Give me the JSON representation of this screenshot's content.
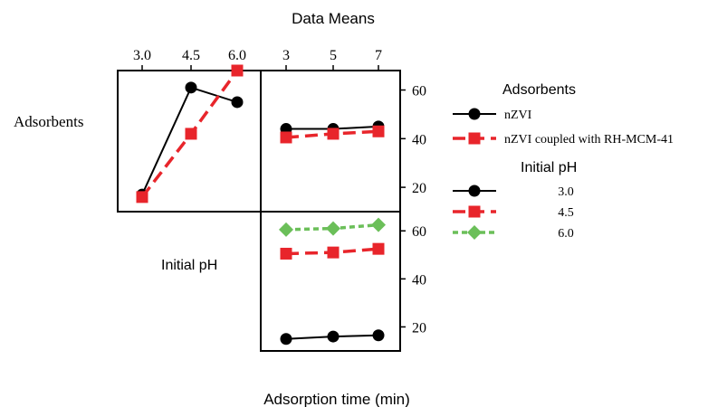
{
  "title": "Data Means",
  "xlabel": "Adsorption time (min)",
  "row_labels": [
    "Adsorbents",
    "Initial pH"
  ],
  "legend_adsorbents": {
    "title": "Adsorbents",
    "items": [
      {
        "label": "nZVI",
        "color": "#000000",
        "marker": "circle",
        "dash": "solid"
      },
      {
        "label": "nZVI coupled with RH-MCM-41",
        "color": "#e8252b",
        "marker": "square",
        "dash": "dashed"
      }
    ]
  },
  "legend_ph": {
    "title": "Initial pH",
    "items": [
      {
        "label": "3.0",
        "color": "#000000",
        "marker": "circle",
        "dash": "solid"
      },
      {
        "label": "4.5",
        "color": "#e8252b",
        "marker": "square",
        "dash": "dashed"
      },
      {
        "label": "6.0",
        "color": "#6bbf59",
        "marker": "diamond",
        "dash": "dotted"
      }
    ]
  },
  "chart_data": [
    {
      "type": "line",
      "panel": "Adsorbents x Initial pH",
      "x": [
        "3.0",
        "4.5",
        "6.0"
      ],
      "ylim": [
        10,
        68
      ],
      "series": [
        {
          "name": "nZVI",
          "values": [
            17,
            61,
            55
          ]
        },
        {
          "name": "nZVI coupled with RH-MCM-41",
          "values": [
            16,
            42,
            68
          ]
        }
      ]
    },
    {
      "type": "line",
      "panel": "Adsorbents x Adsorption time",
      "x": [
        "3",
        "5",
        "7"
      ],
      "ylim": [
        10,
        68
      ],
      "yticks": [
        20,
        40,
        60
      ],
      "series": [
        {
          "name": "nZVI",
          "values": [
            44,
            44,
            45
          ]
        },
        {
          "name": "nZVI coupled with RH-MCM-41",
          "values": [
            40.5,
            42,
            43
          ]
        }
      ]
    },
    {
      "type": "line",
      "panel": "Initial pH x Adsorption time",
      "x": [
        "3",
        "5",
        "7"
      ],
      "ylim": [
        10,
        68
      ],
      "yticks": [
        20,
        40,
        60
      ],
      "series": [
        {
          "name": "3.0",
          "values": [
            15,
            16,
            16.5
          ]
        },
        {
          "name": "4.5",
          "values": [
            50.5,
            51,
            52.5
          ]
        },
        {
          "name": "6.0",
          "values": [
            60.5,
            61,
            62.5
          ]
        }
      ]
    }
  ]
}
